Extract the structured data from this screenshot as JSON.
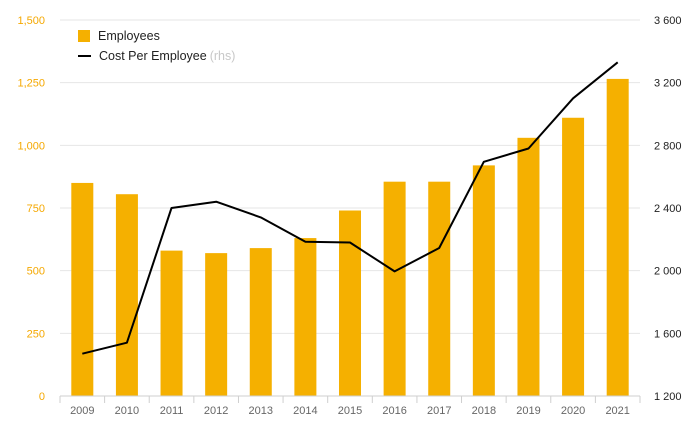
{
  "chart_data": {
    "type": "bar",
    "title": "",
    "xlabel": "",
    "ylabel": "",
    "categories": [
      "2009",
      "2010",
      "2011",
      "2012",
      "2013",
      "2014",
      "2015",
      "2016",
      "2017",
      "2018",
      "2019",
      "2020",
      "2021"
    ],
    "series": [
      {
        "name": "Employees",
        "type": "bar",
        "axis": "left",
        "color": "#f5b000",
        "values": [
          850,
          805,
          580,
          570,
          590,
          630,
          740,
          855,
          855,
          920,
          1030,
          1110,
          1265
        ]
      },
      {
        "name": "Cost Per Employee",
        "type": "line",
        "axis": "right",
        "color": "#000000",
        "values": [
          1470,
          1540,
          2400,
          2440,
          2340,
          2185,
          2180,
          1995,
          2145,
          2695,
          2780,
          3100,
          3330
        ]
      }
    ],
    "ylim_left": [
      0,
      1500
    ],
    "yticks_left": [
      "0",
      "250",
      "500",
      "750",
      "1,000",
      "1,250",
      "1,500"
    ],
    "ylim_right": [
      1200,
      3600
    ],
    "yticks_right": [
      "1 200",
      "1 600",
      "2 000",
      "2 400",
      "2 800",
      "3 200",
      "3 600"
    ],
    "grid": true,
    "legend_position": "top-left",
    "legend": {
      "employees": "Employees",
      "cost": "Cost Per Employee",
      "rhs_note": "(rhs)"
    },
    "colors": {
      "bar": "#f5b000",
      "line": "#000000",
      "left_axis_text": "#f5a800",
      "right_axis_text": "#222222",
      "grid": "#e6e6e6"
    }
  }
}
